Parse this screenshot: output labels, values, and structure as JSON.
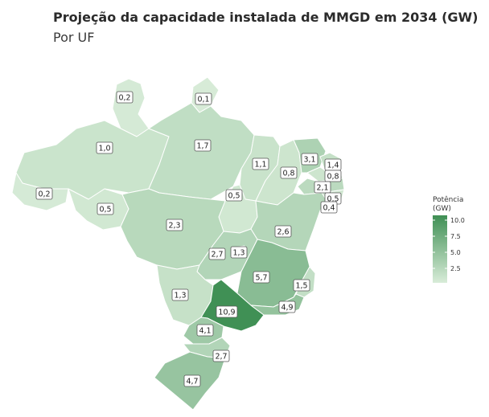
{
  "title": "Projeção da capacidade instalada de MMGD em 2034 (GW)",
  "subtitle": "Por UF",
  "legend": {
    "title_line1": "Potência",
    "title_line2": "(GW)",
    "ticks": [
      "10.0",
      "7.5",
      "5.0",
      "2.5"
    ],
    "color_low": "#d8ecd8",
    "color_high": "#3f8f54"
  },
  "regions": [
    {
      "id": "RR",
      "label": "0,2",
      "value": 0.2
    },
    {
      "id": "AP",
      "label": "0,1",
      "value": 0.1
    },
    {
      "id": "AM",
      "label": "1,0",
      "value": 1.0
    },
    {
      "id": "PA",
      "label": "1,7",
      "value": 1.7
    },
    {
      "id": "MA",
      "label": "1,1",
      "value": 1.1
    },
    {
      "id": "PI",
      "label": "0,8",
      "value": 0.8
    },
    {
      "id": "CE",
      "label": "3,1",
      "value": 3.1
    },
    {
      "id": "RN",
      "label": "1,4",
      "value": 1.4
    },
    {
      "id": "PB",
      "label": "0,8",
      "value": 0.8
    },
    {
      "id": "PE",
      "label": "2,1",
      "value": 2.1
    },
    {
      "id": "AL",
      "label": "0,5",
      "value": 0.5
    },
    {
      "id": "SE",
      "label": "0,4",
      "value": 0.4
    },
    {
      "id": "AC",
      "label": "0,2",
      "value": 0.2
    },
    {
      "id": "RO",
      "label": "0,5",
      "value": 0.5
    },
    {
      "id": "TO",
      "label": "0,5",
      "value": 0.5
    },
    {
      "id": "BA",
      "label": "2,6",
      "value": 2.6
    },
    {
      "id": "MT",
      "label": "2,3",
      "value": 2.3
    },
    {
      "id": "GO",
      "label": "2,7",
      "value": 2.7
    },
    {
      "id": "DF",
      "label": "1,3",
      "value": 1.3
    },
    {
      "id": "MG",
      "label": "5,7",
      "value": 5.7
    },
    {
      "id": "ES",
      "label": "1,5",
      "value": 1.5
    },
    {
      "id": "MS",
      "label": "1,3",
      "value": 1.3
    },
    {
      "id": "SP",
      "label": "10,9",
      "value": 10.9
    },
    {
      "id": "RJ",
      "label": "4,9",
      "value": 4.9
    },
    {
      "id": "PR",
      "label": "4,1",
      "value": 4.1
    },
    {
      "id": "SC",
      "label": "2,7",
      "value": 2.7
    },
    {
      "id": "RS",
      "label": "4,7",
      "value": 4.7
    }
  ]
}
